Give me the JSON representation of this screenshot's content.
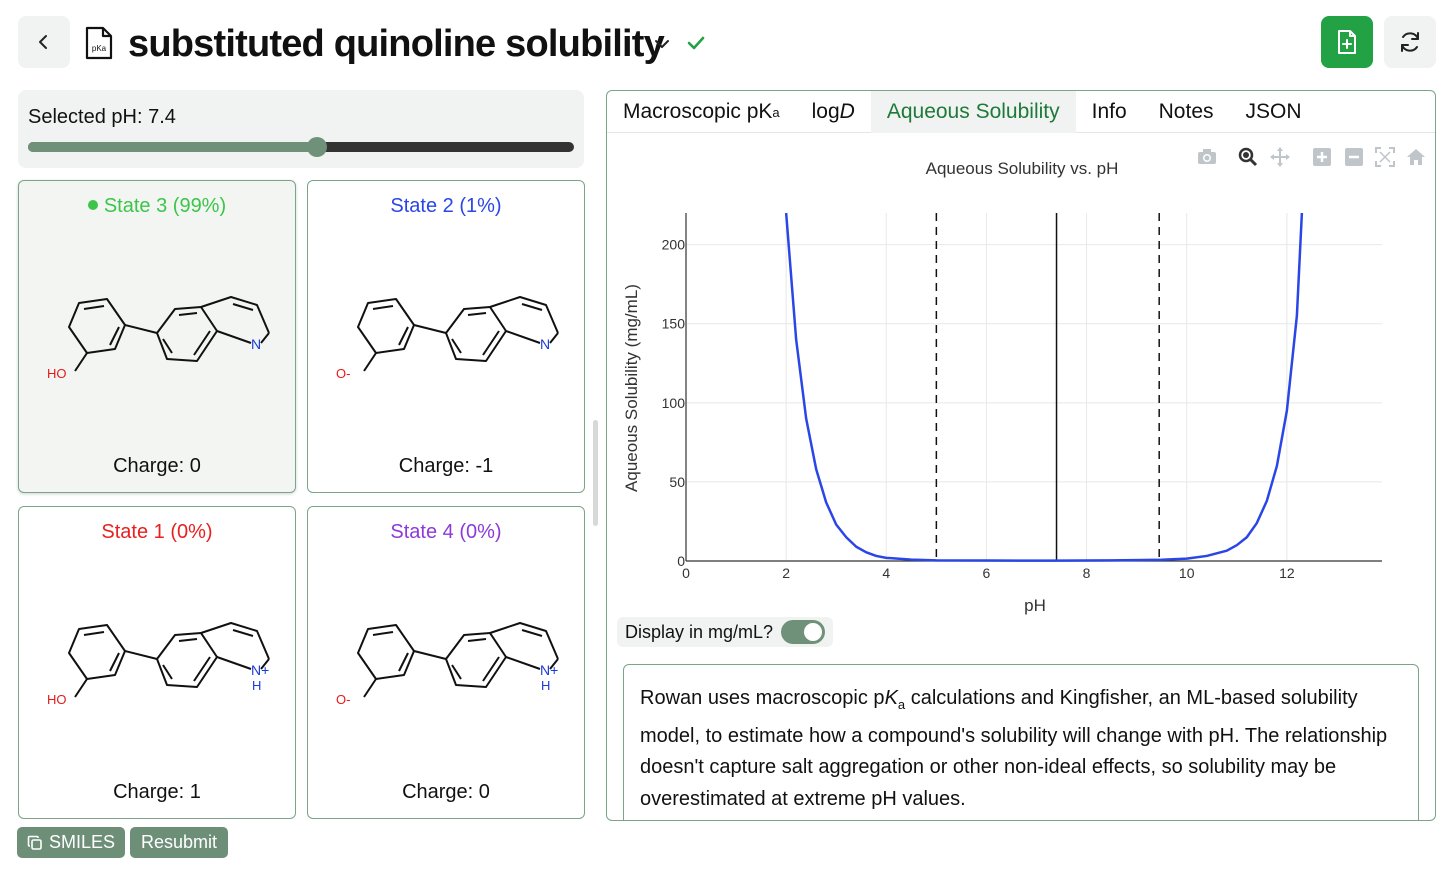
{
  "header": {
    "title": "substituted quinoline solubility",
    "doc_icon_label": "pKa",
    "accent_color": "#22a245"
  },
  "ph_panel": {
    "label": "Selected pH: 7.4",
    "value": 7.4,
    "min": 0,
    "max": 14,
    "fill_color": "#6f9179"
  },
  "states": [
    {
      "title": "State 3 (99%)",
      "charge": "Charge: 0",
      "color": "#3cc54a",
      "selected": true,
      "phenol": "HO",
      "nitrogen": "N",
      "protonated": false
    },
    {
      "title": "State 2 (1%)",
      "charge": "Charge: -1",
      "color": "#2a46e6",
      "selected": false,
      "phenol": "O-",
      "nitrogen": "N",
      "protonated": false
    },
    {
      "title": "State 1 (0%)",
      "charge": "Charge: 1",
      "color": "#e82020",
      "selected": false,
      "phenol": "HO",
      "nitrogen": "N+",
      "protonated": true
    },
    {
      "title": "State 4 (0%)",
      "charge": "Charge: 0",
      "color": "#8c3adb",
      "selected": false,
      "phenol": "O-",
      "nitrogen": "N+",
      "protonated": true
    }
  ],
  "buttons": {
    "smiles": "SMILES",
    "resubmit": "Resubmit"
  },
  "tabs": [
    {
      "label": "Macroscopic pK",
      "sub": "a",
      "active": false
    },
    {
      "label": "log",
      "italic": "D",
      "active": false
    },
    {
      "label": "Aqueous Solubility",
      "active": true
    },
    {
      "label": "Info",
      "active": false
    },
    {
      "label": "Notes",
      "active": false
    },
    {
      "label": "JSON",
      "active": false
    }
  ],
  "toolbar_icons": [
    "camera-icon",
    "zoom-icon",
    "pan-icon",
    "zoom-in-icon",
    "zoom-out-icon",
    "autoscale-icon",
    "reset-axes-icon"
  ],
  "chart_data": {
    "type": "line",
    "title": "Aqueous Solubility vs. pH",
    "xlabel": "pH",
    "ylabel": "Aqueous Solubility (mg/mL)",
    "xlim": [
      0,
      13.9
    ],
    "ylim": [
      0,
      220
    ],
    "xticks": [
      0,
      2,
      4,
      6,
      8,
      10,
      12
    ],
    "yticks": [
      0,
      50,
      100,
      150,
      200
    ],
    "grid": true,
    "series": [
      {
        "color": "#2a46e6",
        "x": [
          2.0,
          2.2,
          2.4,
          2.6,
          2.8,
          3.0,
          3.2,
          3.4,
          3.6,
          3.8,
          4.0,
          4.5,
          5.0,
          6.0,
          7.4,
          8.5,
          9.5,
          10.0,
          10.4,
          10.8,
          11.0,
          11.2,
          11.4,
          11.6,
          11.8,
          12.0,
          12.2,
          12.3
        ],
        "y": [
          220,
          140,
          90,
          58,
          37,
          23,
          15,
          9,
          5.5,
          3.2,
          2.0,
          0.9,
          0.4,
          0.3,
          0.2,
          0.4,
          0.8,
          1.5,
          3.2,
          6.5,
          10,
          15,
          24,
          38,
          60,
          95,
          155,
          220
        ]
      }
    ],
    "vlines": [
      {
        "x": 5.0,
        "style": "dashed"
      },
      {
        "x": 7.4,
        "style": "solid"
      },
      {
        "x": 9.45,
        "style": "dashed"
      }
    ]
  },
  "toggle": {
    "label": "Display in mg/mL?",
    "on": true
  },
  "info": {
    "part1": "Rowan uses macroscopic p",
    "italic": "K",
    "sub": "a",
    "part2": " calculations and Kingfisher, an ML-based solubility model, to estimate how a compound's solubility will change with pH. The relationship doesn't capture salt aggregation or other non-ideal effects, so solubility may be overestimated at extreme pH values."
  }
}
